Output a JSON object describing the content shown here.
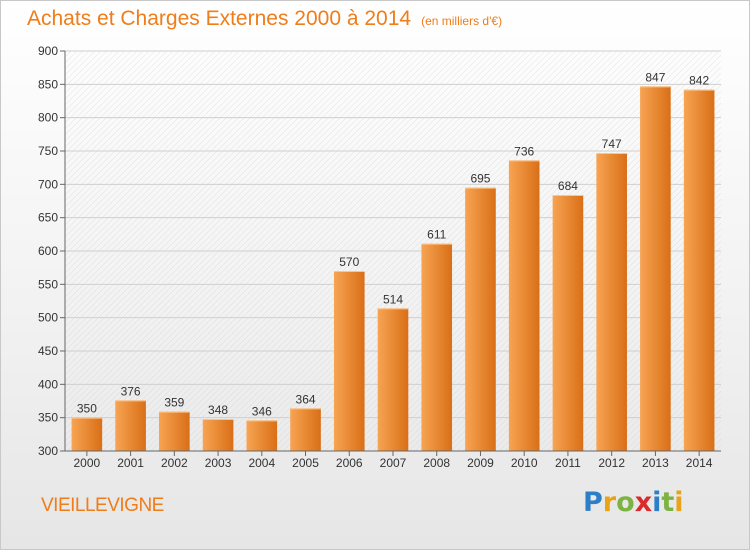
{
  "header": {
    "title": "Achats et Charges Externes 2000 à 2014",
    "unit": "(en milliers d'€)"
  },
  "footer": {
    "commune": "VIEILLEVIGNE",
    "logo_letters": [
      "P",
      "r",
      "o",
      "x",
      "i",
      "t",
      "i"
    ],
    "logo_colors": [
      "#2c7fc7",
      "#e8a317",
      "#7cb342",
      "#d92b2b",
      "#2c7fc7",
      "#7cb342",
      "#e8a317"
    ]
  },
  "colors": {
    "accent": "#ef7d1a",
    "bar_light": "#f7a453",
    "bar_dark": "#d96f17",
    "grid": "#cfcfcf",
    "axis_text": "#333333"
  },
  "chart_data": {
    "type": "bar",
    "categories": [
      "2000",
      "2001",
      "2002",
      "2003",
      "2004",
      "2005",
      "2006",
      "2007",
      "2008",
      "2009",
      "2010",
      "2011",
      "2012",
      "2013",
      "2014"
    ],
    "values": [
      350,
      376,
      359,
      348,
      346,
      364,
      570,
      514,
      611,
      695,
      736,
      684,
      747,
      847,
      842
    ],
    "ylim": [
      300,
      900
    ],
    "yticks": [
      300,
      350,
      400,
      450,
      500,
      550,
      600,
      650,
      700,
      750,
      800,
      850,
      900
    ],
    "grid": true,
    "data_labels": true
  }
}
